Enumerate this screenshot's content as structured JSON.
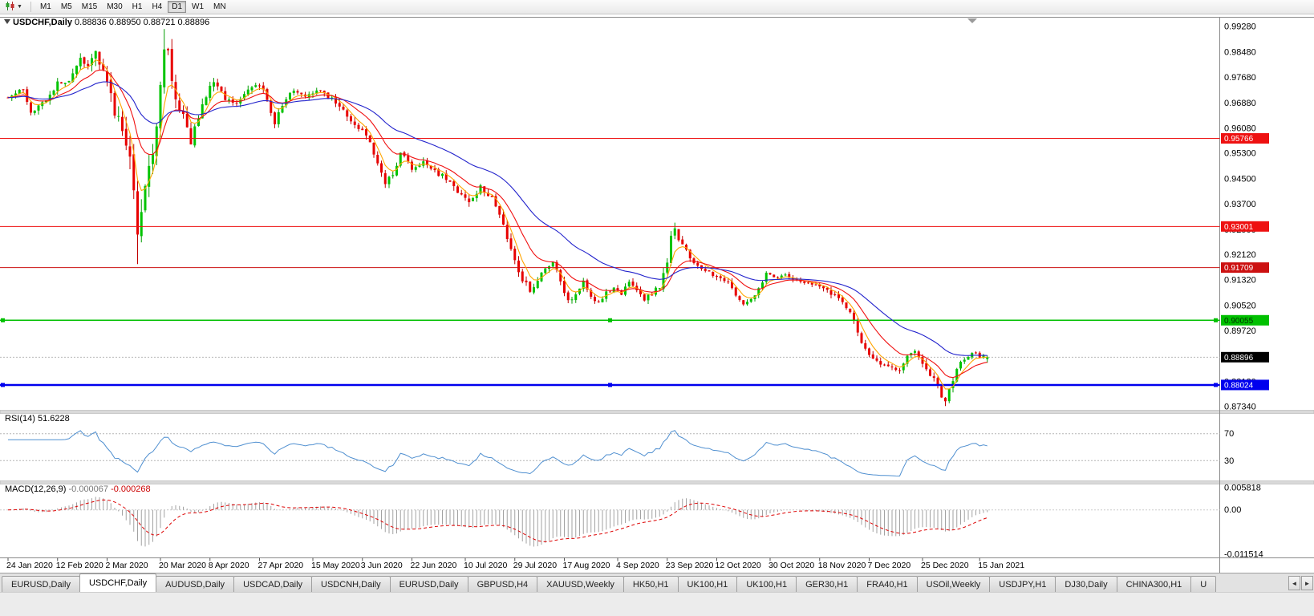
{
  "toolbar": {
    "timeframes": [
      "M1",
      "M5",
      "M15",
      "M30",
      "H1",
      "H4",
      "D1",
      "W1",
      "MN"
    ],
    "active_timeframe": "D1"
  },
  "chart": {
    "title_symbol": "USDCHF,Daily",
    "title_ohlc": "0.88836 0.88950 0.88721 0.88896",
    "current_price": 0.88896,
    "current_price_label": "0.88896",
    "current_price_badge_color": "#000000",
    "hlines": [
      {
        "price": 0.95766,
        "label": "0.95766",
        "color": "#ee1111",
        "width": 1,
        "text_color": "#ffffff",
        "handles": false
      },
      {
        "price": 0.93001,
        "label": "0.93001",
        "color": "#ee1111",
        "width": 1,
        "text_color": "#ffffff",
        "handles": false
      },
      {
        "price": 0.91709,
        "label": "0.91709",
        "color": "#cc1111",
        "width": 1,
        "text_color": "#ffffff",
        "handles": false
      },
      {
        "price": 0.90055,
        "label": "0.90055",
        "color": "#00c000",
        "width": 1.5,
        "text_color": "#003300",
        "handles": true
      },
      {
        "price": 0.88024,
        "label": "0.88024",
        "color": "#0000ee",
        "width": 2.5,
        "text_color": "#ffffff",
        "handles": true
      }
    ]
  },
  "rsi": {
    "name": "RSI(14)",
    "value": "51.6228",
    "level_labels": [
      "70",
      "30"
    ]
  },
  "macd": {
    "name": "MACD(12,26,9)",
    "value_main": "-0.000067",
    "value_signal": "-0.000268",
    "axis_labels": {
      "top": "0.005818",
      "zero": "0.00",
      "bottom": "-0.011514"
    }
  },
  "dates": [
    {
      "label": "24 Jan 2020",
      "bar": 0
    },
    {
      "label": "12 Feb 2020",
      "bar": 13
    },
    {
      "label": "2 Mar 2020",
      "bar": 26
    },
    {
      "label": "20 Mar 2020",
      "bar": 40
    },
    {
      "label": "8 Apr 2020",
      "bar": 53
    },
    {
      "label": "27 Apr 2020",
      "bar": 66
    },
    {
      "label": "15 May 2020",
      "bar": 80
    },
    {
      "label": "3 Jun 2020",
      "bar": 93
    },
    {
      "label": "22 Jun 2020",
      "bar": 106
    },
    {
      "label": "10 Jul 2020",
      "bar": 120
    },
    {
      "label": "29 Jul 2020",
      "bar": 133
    },
    {
      "label": "17 Aug 2020",
      "bar": 146
    },
    {
      "label": "4 Sep 2020",
      "bar": 160
    },
    {
      "label": "23 Sep 2020",
      "bar": 173
    },
    {
      "label": "12 Oct 2020",
      "bar": 186
    },
    {
      "label": "30 Oct 2020",
      "bar": 200
    },
    {
      "label": "18 Nov 2020",
      "bar": 213
    },
    {
      "label": "7 Dec 2020",
      "bar": 226
    },
    {
      "label": "25 Dec 2020",
      "bar": 240
    },
    {
      "label": "15 Jan 2021",
      "bar": 255
    }
  ],
  "tabbar": {
    "tabs": [
      "EURUSD,Daily",
      "USDCHF,Daily",
      "AUDUSD,Daily",
      "USDCAD,Daily",
      "USDCNH,Daily",
      "EURUSD,Daily",
      "GBPUSD,H4",
      "XAUUSD,Weekly",
      "HK50,H1",
      "UK100,H1",
      "UK100,H1",
      "GER30,H1",
      "FRA40,H1",
      "USOil,Weekly",
      "USDJPY,H1",
      "DJ30,Daily",
      "CHINA300,H1",
      "U"
    ],
    "active_index": 1,
    "scroll_left": "◄",
    "scroll_right": "►"
  },
  "chart_data": {
    "type": "candlestick",
    "symbol": "USDCHF",
    "timeframe": "Daily",
    "title": "USDCHF,Daily 0.88836 0.88950 0.88721 0.88896",
    "num_candles": 258,
    "price_axis": {
      "max_label_price": 0.9928,
      "min_label_price": 0.8734,
      "labels": [
        "0.99280",
        "0.98480",
        "0.97680",
        "0.96880",
        "0.96080",
        "0.95300",
        "0.94500",
        "0.93700",
        "0.92900",
        "0.92120",
        "0.91320",
        "0.90520",
        "0.89720",
        "0.88120",
        "0.87340"
      ]
    },
    "last_candle": {
      "open": 0.88836,
      "high": 0.8895,
      "low": 0.88721,
      "close": 0.88896
    },
    "note": "close_anchors / volatility_anchors are [bar_index, value] approximations of the visible daily price path from 24 Jan 2020 to mid Jan 2021",
    "close_anchors": [
      [
        0,
        0.9705
      ],
      [
        4,
        0.9732
      ],
      [
        6,
        0.9655
      ],
      [
        9,
        0.9685
      ],
      [
        13,
        0.9748
      ],
      [
        16,
        0.9762
      ],
      [
        19,
        0.9832
      ],
      [
        21,
        0.9808
      ],
      [
        23,
        0.9845
      ],
      [
        26,
        0.9762
      ],
      [
        28,
        0.9655
      ],
      [
        30,
        0.9602
      ],
      [
        32,
        0.9525
      ],
      [
        33,
        0.9395
      ],
      [
        34,
        0.9275
      ],
      [
        35,
        0.9335
      ],
      [
        36,
        0.9432
      ],
      [
        38,
        0.9522
      ],
      [
        39,
        0.9605
      ],
      [
        40,
        0.9752
      ],
      [
        41,
        0.9865
      ],
      [
        42,
        0.9835
      ],
      [
        44,
        0.9705
      ],
      [
        46,
        0.9645
      ],
      [
        48,
        0.9565
      ],
      [
        50,
        0.9645
      ],
      [
        52,
        0.9712
      ],
      [
        54,
        0.9762
      ],
      [
        57,
        0.9705
      ],
      [
        60,
        0.9682
      ],
      [
        63,
        0.9732
      ],
      [
        66,
        0.9748
      ],
      [
        68,
        0.9702
      ],
      [
        70,
        0.9625
      ],
      [
        72,
        0.9682
      ],
      [
        75,
        0.9732
      ],
      [
        78,
        0.9712
      ],
      [
        81,
        0.9726
      ],
      [
        85,
        0.9702
      ],
      [
        88,
        0.9662
      ],
      [
        91,
        0.9622
      ],
      [
        93,
        0.9602
      ],
      [
        95,
        0.9562
      ],
      [
        97,
        0.9502
      ],
      [
        99,
        0.9435
      ],
      [
        101,
        0.9462
      ],
      [
        103,
        0.9532
      ],
      [
        106,
        0.9482
      ],
      [
        109,
        0.9502
      ],
      [
        112,
        0.9472
      ],
      [
        115,
        0.9452
      ],
      [
        118,
        0.9402
      ],
      [
        121,
        0.9382
      ],
      [
        124,
        0.9422
      ],
      [
        127,
        0.9392
      ],
      [
        129,
        0.9332
      ],
      [
        131,
        0.9262
      ],
      [
        133,
        0.9192
      ],
      [
        135,
        0.9132
      ],
      [
        137,
        0.9102
      ],
      [
        139,
        0.9132
      ],
      [
        141,
        0.9172
      ],
      [
        143,
        0.9192
      ],
      [
        145,
        0.9132
      ],
      [
        147,
        0.9062
      ],
      [
        149,
        0.9092
      ],
      [
        151,
        0.9132
      ],
      [
        153,
        0.9082
      ],
      [
        155,
        0.9062
      ],
      [
        157,
        0.9092
      ],
      [
        159,
        0.9112
      ],
      [
        161,
        0.9082
      ],
      [
        163,
        0.9132
      ],
      [
        165,
        0.9102
      ],
      [
        167,
        0.9072
      ],
      [
        169,
        0.9092
      ],
      [
        171,
        0.9112
      ],
      [
        173,
        0.9192
      ],
      [
        174,
        0.9262
      ],
      [
        175,
        0.9292
      ],
      [
        176,
        0.9252
      ],
      [
        178,
        0.9222
      ],
      [
        180,
        0.9192
      ],
      [
        183,
        0.9162
      ],
      [
        186,
        0.9142
      ],
      [
        189,
        0.9122
      ],
      [
        191,
        0.9082
      ],
      [
        193,
        0.9052
      ],
      [
        195,
        0.9072
      ],
      [
        197,
        0.9102
      ],
      [
        199,
        0.9152
      ],
      [
        201,
        0.9142
      ],
      [
        204,
        0.9146
      ],
      [
        207,
        0.9132
      ],
      [
        210,
        0.9122
      ],
      [
        213,
        0.9112
      ],
      [
        216,
        0.9092
      ],
      [
        219,
        0.9062
      ],
      [
        221,
        0.9032
      ],
      [
        223,
        0.8962
      ],
      [
        225,
        0.8912
      ],
      [
        227,
        0.8892
      ],
      [
        229,
        0.8872
      ],
      [
        231,
        0.8856
      ],
      [
        234,
        0.8852
      ],
      [
        236,
        0.8892
      ],
      [
        238,
        0.8912
      ],
      [
        240,
        0.8862
      ],
      [
        242,
        0.8832
      ],
      [
        244,
        0.8802
      ],
      [
        245,
        0.8772
      ],
      [
        246,
        0.8742
      ],
      [
        247,
        0.8782
      ],
      [
        248,
        0.8812
      ],
      [
        249,
        0.8852
      ],
      [
        250,
        0.8872
      ],
      [
        252,
        0.8892
      ],
      [
        254,
        0.8906
      ],
      [
        255,
        0.8886
      ],
      [
        256,
        0.8892
      ],
      [
        257,
        0.88896
      ]
    ],
    "volatility_anchors": [
      [
        0,
        0.0016
      ],
      [
        18,
        0.0022
      ],
      [
        27,
        0.0045
      ],
      [
        33,
        0.0065
      ],
      [
        36,
        0.0055
      ],
      [
        41,
        0.006
      ],
      [
        45,
        0.0038
      ],
      [
        52,
        0.0025
      ],
      [
        60,
        0.002
      ],
      [
        80,
        0.0018
      ],
      [
        95,
        0.0022
      ],
      [
        110,
        0.0018
      ],
      [
        128,
        0.0026
      ],
      [
        138,
        0.0022
      ],
      [
        150,
        0.0018
      ],
      [
        165,
        0.0015
      ],
      [
        173,
        0.0026
      ],
      [
        178,
        0.0018
      ],
      [
        195,
        0.0015
      ],
      [
        210,
        0.0013
      ],
      [
        222,
        0.002
      ],
      [
        235,
        0.0014
      ],
      [
        246,
        0.0024
      ],
      [
        252,
        0.0012
      ],
      [
        257,
        0.001
      ]
    ],
    "wick_overrides": [
      [
        23,
        "h",
        0.9852
      ],
      [
        34,
        "l",
        0.9182
      ],
      [
        41,
        "h",
        0.992
      ],
      [
        175,
        "h",
        0.9312
      ],
      [
        246,
        "l",
        0.8736
      ]
    ],
    "moving_averages": [
      {
        "name": "fast-ma",
        "period": 5,
        "color": "#ffa500"
      },
      {
        "name": "mid-ma",
        "period": 13,
        "color": "#f01010"
      },
      {
        "name": "slow-ma",
        "period": 34,
        "color": "#2323cc"
      }
    ],
    "colors": {
      "up": "#00c400",
      "down": "#e80000",
      "up_wick": "#009c00",
      "down_wick": "#c00000",
      "bid_line": "#b8b8b8"
    },
    "indicators": {
      "rsi": {
        "period": 14,
        "levels": [
          70,
          30
        ],
        "color": "#4f8fd0",
        "current": 51.6228
      },
      "macd": {
        "fast": 12,
        "slow": 26,
        "signal": 9,
        "hist_color": "#a2a2a2",
        "signal_color": "#dd0000",
        "current_main": -6.7e-05,
        "current_signal": -0.000268,
        "axis_max": 0.005818,
        "axis_min": -0.011514
      }
    }
  }
}
